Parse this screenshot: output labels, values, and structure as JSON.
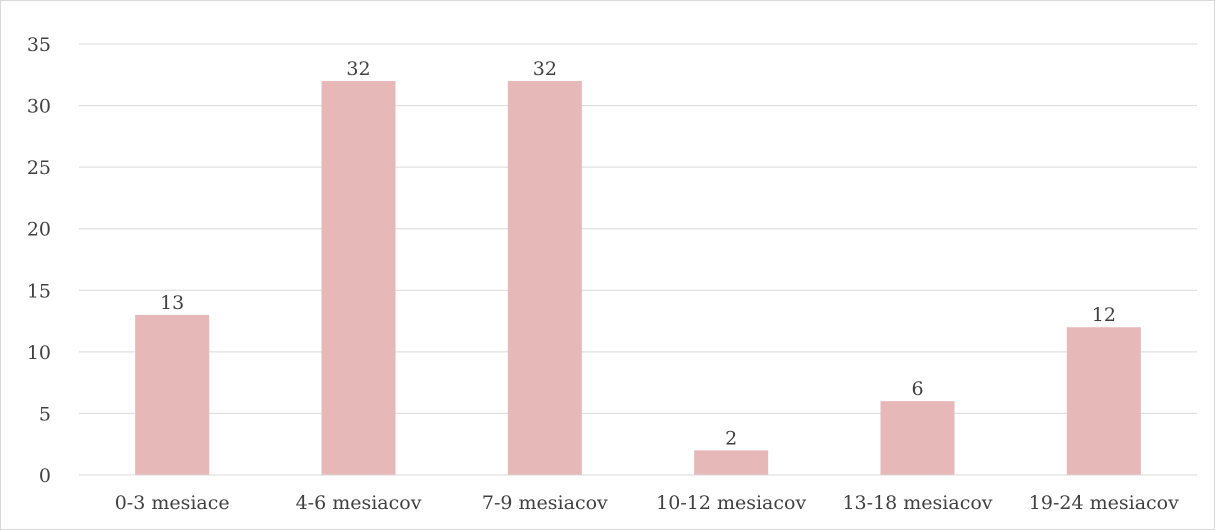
{
  "chart_data": {
    "type": "bar",
    "title": "",
    "xlabel": "",
    "ylabel": "",
    "categories": [
      "0-3 mesiace",
      "4-6 mesiacov",
      "7-9 mesiacov",
      "10-12 mesiacov",
      "13-18 mesiacov",
      "19-24 mesiacov"
    ],
    "values": [
      13,
      32,
      32,
      2,
      6,
      12
    ],
    "data_labels": [
      "13",
      "32",
      "32",
      "2",
      "6",
      "12"
    ],
    "ylim": [
      0,
      35
    ],
    "yticks": [
      "0",
      "5",
      "10",
      "15",
      "20",
      "25",
      "30",
      "35"
    ],
    "grid": true,
    "legend": "none",
    "bar_color": "#e6b8b7"
  }
}
